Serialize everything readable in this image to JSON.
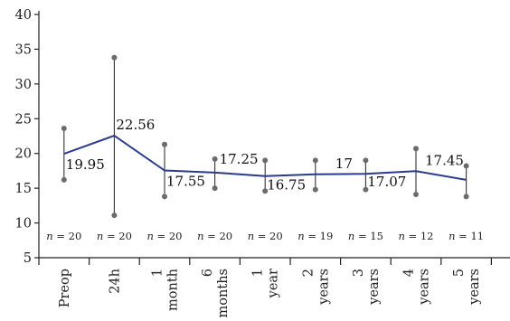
{
  "chart_data": {
    "type": "line",
    "title": "",
    "xlabel": "",
    "ylabel": "",
    "ylim": [
      5,
      40
    ],
    "yticks": [
      "5",
      "10",
      "15",
      "20",
      "25",
      "30",
      "35",
      "40"
    ],
    "categories": [
      [
        "Preop"
      ],
      [
        "24h"
      ],
      [
        "1",
        "month"
      ],
      [
        "6",
        "months"
      ],
      [
        "1",
        "year"
      ],
      [
        "2",
        "years"
      ],
      [
        "3",
        "years"
      ],
      [
        "4",
        "years"
      ],
      [
        "5",
        "years"
      ]
    ],
    "series": [
      {
        "values": [
          19.95,
          22.56,
          17.55,
          17.25,
          16.75,
          17,
          17.07,
          17.45,
          16.2
        ],
        "upper": [
          23.6,
          33.8,
          21.3,
          19.2,
          19.0,
          19.0,
          19.0,
          20.7,
          18.2
        ],
        "lower": [
          16.2,
          11.1,
          13.8,
          15.0,
          14.6,
          14.8,
          14.8,
          14.1,
          13.8
        ],
        "color": "#2b3a8c"
      }
    ],
    "data_labels": [
      "19.95",
      "22.56",
      "17.55",
      "17.25",
      "16.75",
      "17",
      "17.07",
      "17.45",
      ""
    ],
    "n_labels": [
      "20",
      "20",
      "20",
      "20",
      "20",
      "19",
      "15",
      "12",
      "11"
    ],
    "n_prefix": "n",
    "n_eq": " = ",
    "grid": false,
    "legend": "none"
  }
}
